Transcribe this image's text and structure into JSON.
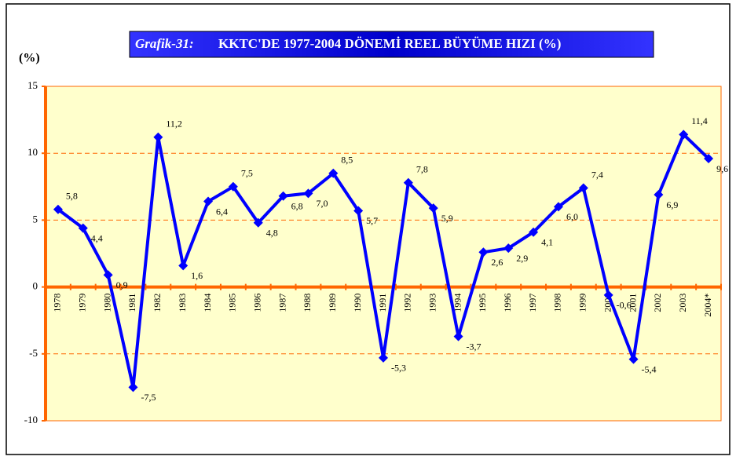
{
  "chart_data": {
    "type": "line",
    "title": {
      "prefix": "Grafik-31:",
      "text": "KKTC'DE 1977-2004 DÖNEMİ REEL BÜYÜME HIZI (%)"
    },
    "y_label": "(%)",
    "categories": [
      "1978",
      "1979",
      "1980",
      "1981",
      "1982",
      "1983",
      "1984",
      "1985",
      "1986",
      "1987",
      "1988",
      "1989",
      "1990",
      "1991",
      "1992",
      "1993",
      "1994",
      "1995",
      "1996",
      "1997",
      "1998",
      "1999",
      "2000",
      "2001",
      "2002",
      "2003",
      "2004*"
    ],
    "series": [
      {
        "color": "#0000ff",
        "values": [
          5.8,
          4.4,
          0.9,
          -7.5,
          11.2,
          1.6,
          6.4,
          7.5,
          4.8,
          6.8,
          7.0,
          8.5,
          5.7,
          -5.3,
          7.8,
          5.9,
          -3.7,
          2.6,
          2.9,
          4.1,
          6.0,
          7.4,
          -0.6,
          -5.4,
          6.9,
          11.4,
          9.6
        ],
        "value_labels": [
          "5,8",
          "4,4",
          "0,9",
          "-7,5",
          "11,2",
          "1,6",
          "6,4",
          "7,5",
          "4,8",
          "6,8",
          "7,0",
          "8,5",
          "5,7",
          "-5,3",
          "7,8",
          "5,9",
          "-3,7",
          "2,6",
          "2,9",
          "4,1",
          "6,0",
          "7,4",
          "-0,6",
          "-5,4",
          "6,9",
          "11,4",
          "9,6"
        ]
      }
    ],
    "ylim": [
      -10,
      15
    ],
    "yticks": [
      -10,
      -5,
      0,
      5,
      10,
      15
    ],
    "grid": true
  }
}
